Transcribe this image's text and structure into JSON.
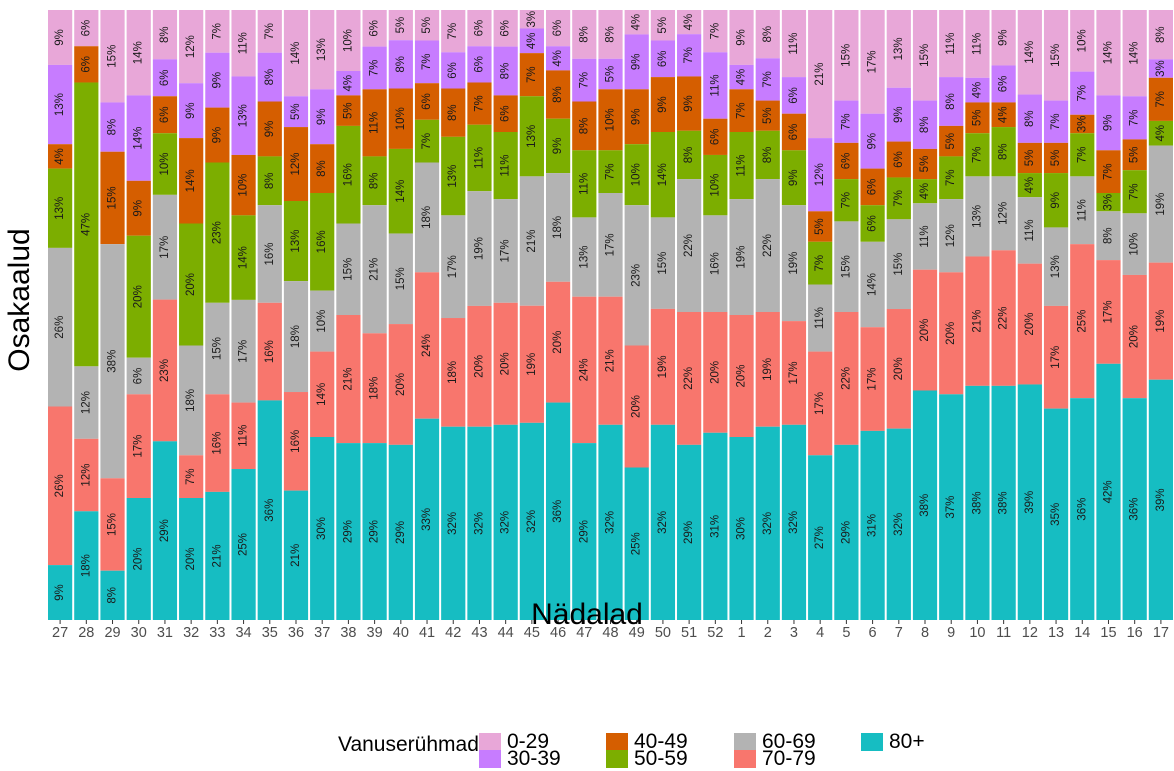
{
  "chart_data": {
    "type": "bar",
    "stacked": true,
    "percent": true,
    "xlabel": "Nädalad",
    "ylabel": "Osakaalud",
    "legend_title": "Vanuserühmad",
    "legend_position": "bottom",
    "grid": false,
    "categories": [
      "27",
      "28",
      "29",
      "30",
      "31",
      "32",
      "33",
      "34",
      "35",
      "36",
      "37",
      "38",
      "39",
      "40",
      "41",
      "42",
      "43",
      "44",
      "45",
      "46",
      "47",
      "48",
      "49",
      "50",
      "51",
      "52",
      "1",
      "2",
      "3",
      "4",
      "5",
      "6",
      "7",
      "8",
      "9",
      "10",
      "11",
      "12",
      "13",
      "14",
      "15",
      "16",
      "17"
    ],
    "series": [
      {
        "name": "80+",
        "color": "#16bdc2",
        "values": [
          9,
          18,
          8,
          20,
          29,
          20,
          21,
          25,
          36,
          21,
          30,
          29,
          29,
          29,
          33,
          32,
          32,
          32,
          32,
          36,
          29,
          32,
          25,
          32,
          29,
          31,
          30,
          32,
          32,
          27,
          29,
          31,
          32,
          38,
          37,
          38,
          38,
          39,
          35,
          36,
          42,
          36,
          39
        ]
      },
      {
        "name": "70-79",
        "color": "#f8766d",
        "values": [
          26,
          12,
          15,
          17,
          23,
          7,
          16,
          11,
          16,
          16,
          14,
          21,
          18,
          20,
          24,
          18,
          20,
          20,
          19,
          20,
          24,
          21,
          20,
          19,
          22,
          20,
          20,
          19,
          17,
          17,
          22,
          17,
          20,
          20,
          20,
          21,
          22,
          20,
          17,
          25,
          17,
          20,
          19
        ]
      },
      {
        "name": "60-69",
        "color": "#b3b3b3",
        "values": [
          26,
          12,
          38,
          6,
          17,
          18,
          15,
          17,
          16,
          18,
          10,
          15,
          21,
          15,
          18,
          17,
          19,
          17,
          21,
          18,
          13,
          17,
          23,
          15,
          22,
          16,
          19,
          22,
          19,
          11,
          15,
          14,
          15,
          11,
          12,
          13,
          12,
          11,
          13,
          11,
          8,
          10,
          19
        ]
      },
      {
        "name": "50-59",
        "color": "#7cae00",
        "values": [
          13,
          47,
          0,
          20,
          10,
          20,
          23,
          14,
          8,
          13,
          16,
          16,
          8,
          14,
          7,
          13,
          11,
          11,
          13,
          9,
          11,
          7,
          10,
          14,
          8,
          10,
          11,
          8,
          9,
          7,
          7,
          6,
          7,
          4,
          7,
          7,
          8,
          4,
          9,
          7,
          3,
          7,
          4
        ]
      },
      {
        "name": "40-49",
        "color": "#d55e00",
        "values": [
          4,
          6,
          15,
          9,
          6,
          14,
          9,
          10,
          9,
          12,
          8,
          5,
          11,
          10,
          6,
          8,
          7,
          6,
          7,
          8,
          8,
          10,
          9,
          9,
          9,
          6,
          7,
          5,
          6,
          5,
          6,
          6,
          6,
          5,
          5,
          5,
          4,
          5,
          5,
          3,
          7,
          5,
          7
        ]
      },
      {
        "name": "30-39",
        "color": "#c77cff",
        "values": [
          13,
          0,
          8,
          14,
          6,
          9,
          9,
          13,
          8,
          5,
          9,
          4,
          7,
          8,
          7,
          6,
          6,
          8,
          4,
          4,
          7,
          5,
          9,
          6,
          7,
          11,
          4,
          7,
          6,
          12,
          7,
          9,
          9,
          8,
          8,
          4,
          6,
          8,
          7,
          7,
          9,
          7,
          3
        ]
      },
      {
        "name": "0-29",
        "color": "#e8a7d8",
        "values": [
          9,
          6,
          15,
          14,
          8,
          12,
          7,
          11,
          7,
          14,
          13,
          10,
          6,
          5,
          5,
          7,
          6,
          6,
          3,
          6,
          8,
          8,
          4,
          5,
          4,
          7,
          9,
          8,
          11,
          21,
          15,
          17,
          13,
          15,
          11,
          11,
          9,
          14,
          15,
          10,
          14,
          14,
          8
        ]
      }
    ],
    "stack_order_top_to_bottom": [
      "0-29",
      "30-39",
      "40-49",
      "50-59",
      "60-69",
      "70-79",
      "80+"
    ],
    "legend_entries": [
      "0-29",
      "30-39",
      "40-49",
      "50-59",
      "60-69",
      "70-79",
      "80+"
    ],
    "ylim": [
      0,
      100
    ],
    "value_suffix": "%"
  }
}
